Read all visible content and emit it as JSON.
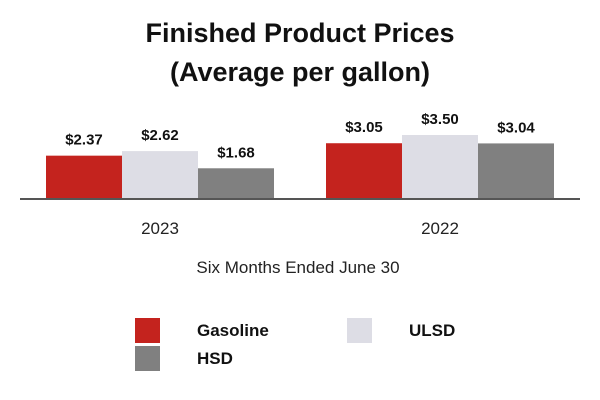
{
  "chart_data": {
    "type": "bar",
    "title": "Finished Product Prices",
    "subtitle": "(Average per gallon)",
    "categories": [
      "2023",
      "2022"
    ],
    "xlabel": "Six Months Ended June 30",
    "ylabel": "",
    "ylim": [
      0,
      3.5
    ],
    "grid": false,
    "legend_position": "bottom",
    "series": [
      {
        "name": "Gasoline",
        "color": "#c4231e",
        "values": [
          2.37,
          3.05
        ],
        "labels": [
          "$2.37",
          "$3.05"
        ]
      },
      {
        "name": "ULSD",
        "color": "#dddde5",
        "values": [
          2.62,
          3.5
        ],
        "labels": [
          "$2.62",
          "$3.50"
        ]
      },
      {
        "name": "HSD",
        "color": "#808080",
        "values": [
          1.68,
          3.04
        ],
        "labels": [
          "$1.68",
          "$3.04"
        ]
      }
    ]
  }
}
